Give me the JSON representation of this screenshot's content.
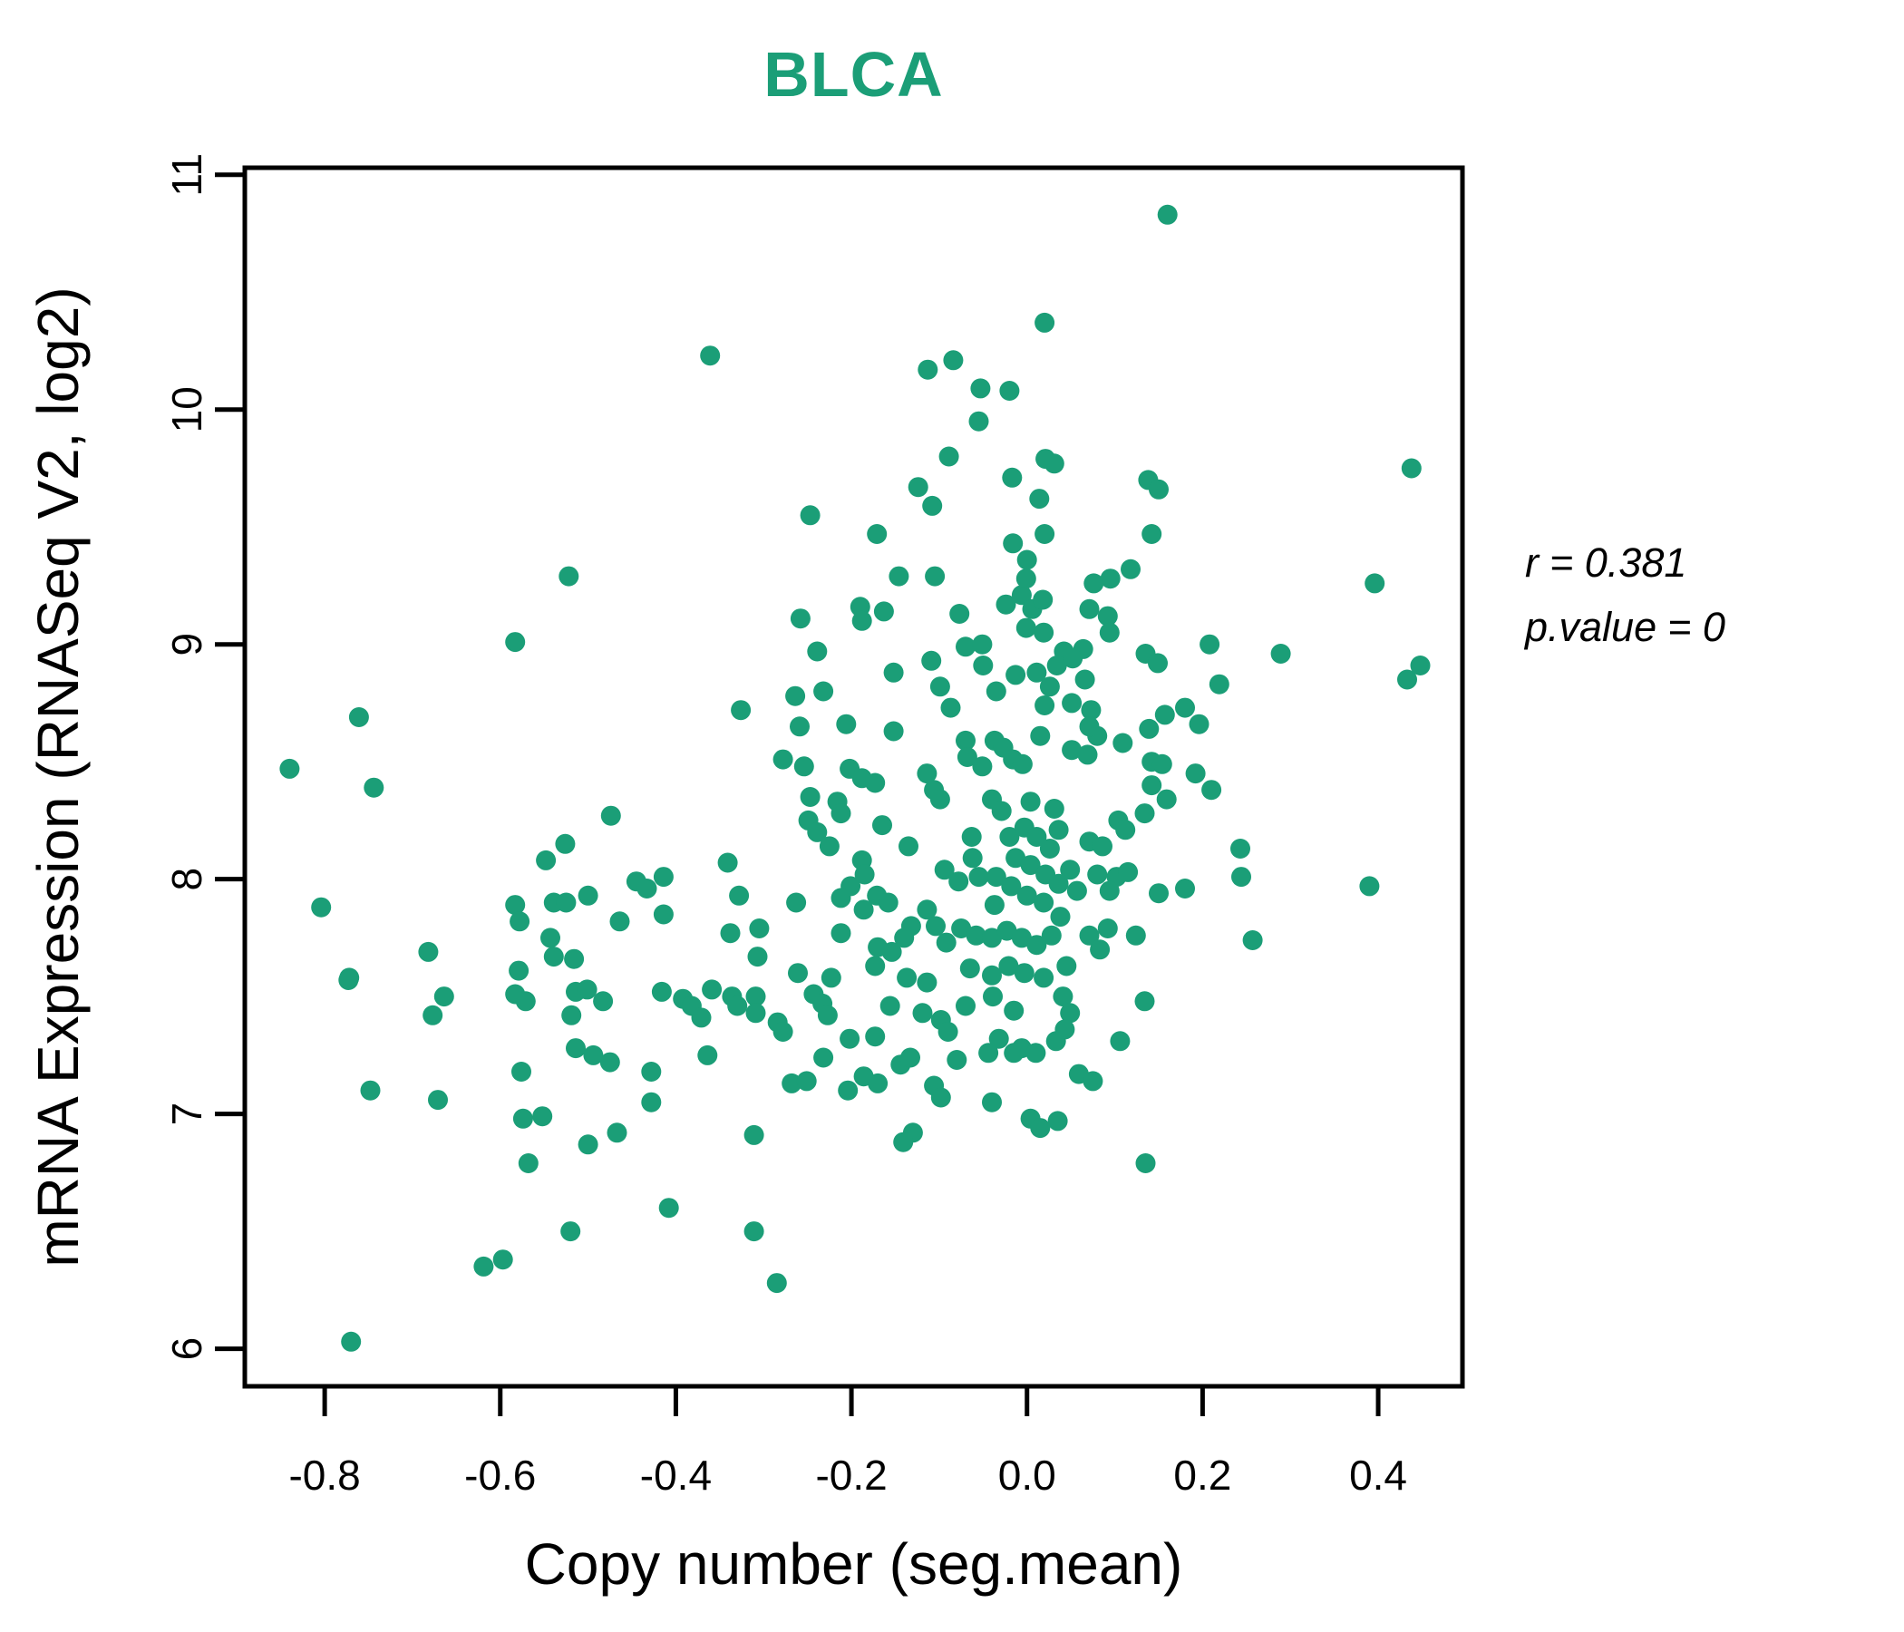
{
  "title": "BLCA",
  "annotation": {
    "lines": [
      {
        "lhs": "r",
        "rhs": "= 0.381"
      },
      {
        "lhs": "p.value",
        "rhs": "= 0"
      }
    ]
  },
  "chart_data": {
    "type": "scatter",
    "title": "BLCA",
    "xlabel": "Copy number (seg.mean)",
    "ylabel": "mRNA Expression (RNASeq V2, log2)",
    "xlim": [
      -0.891,
      0.496
    ],
    "ylim": [
      5.84,
      11.03
    ],
    "grid": false,
    "legend": "none",
    "title_color": "#1B9E77",
    "point_color": "#1B9E77",
    "axis_color": "#000000",
    "x_ticks": {
      "values": [
        -0.8,
        -0.6,
        -0.4,
        -0.2,
        0.0,
        0.2,
        0.4
      ],
      "labels": [
        "-0.8",
        "-0.6",
        "-0.4",
        "-0.2",
        "0.0",
        "0.2",
        "0.4"
      ]
    },
    "y_ticks": {
      "values": [
        6,
        7,
        8,
        9,
        10,
        11
      ],
      "labels": [
        "6",
        "7",
        "8",
        "9",
        "10",
        "11"
      ]
    },
    "annotation": {
      "r": "0.381",
      "p_value": "0"
    },
    "points": [
      [
        -0.361,
        10.23
      ],
      [
        0.02,
        10.37
      ],
      [
        -0.113,
        10.17
      ],
      [
        -0.084,
        10.21
      ],
      [
        -0.053,
        10.09
      ],
      [
        -0.02,
        10.08
      ],
      [
        -0.055,
        9.95
      ],
      [
        -0.089,
        9.8
      ],
      [
        -0.017,
        9.71
      ],
      [
        0.021,
        9.79
      ],
      [
        -0.124,
        9.67
      ],
      [
        -0.108,
        9.59
      ],
      [
        0.014,
        9.62
      ],
      [
        -0.016,
        9.43
      ],
      [
        -0.247,
        9.55
      ],
      [
        -0.171,
        9.47
      ],
      [
        0.02,
        9.47
      ],
      [
        0.0,
        9.36
      ],
      [
        -0.146,
        9.29
      ],
      [
        -0.105,
        9.29
      ],
      [
        0.16,
        10.83
      ],
      [
        0.438,
        9.75
      ],
      [
        0.138,
        9.7
      ],
      [
        0.15,
        9.66
      ],
      [
        0.142,
        9.47
      ],
      [
        0.118,
        9.32
      ],
      [
        0.095,
        9.28
      ],
      [
        0.031,
        9.77
      ],
      [
        0.396,
        9.26
      ],
      [
        0.076,
        9.26
      ],
      [
        -0.522,
        9.29
      ],
      [
        -0.583,
        9.01
      ],
      [
        -0.761,
        8.69
      ],
      [
        -0.84,
        8.47
      ],
      [
        -0.744,
        8.39
      ],
      [
        -0.474,
        8.27
      ],
      [
        -0.526,
        8.15
      ],
      [
        -0.548,
        8.08
      ],
      [
        -0.583,
        7.89
      ],
      [
        -0.578,
        7.82
      ],
      [
        -0.539,
        7.9
      ],
      [
        -0.525,
        7.9
      ],
      [
        -0.5,
        7.93
      ],
      [
        -0.445,
        7.99
      ],
      [
        -0.464,
        7.82
      ],
      [
        -0.543,
        7.75
      ],
      [
        -0.539,
        7.67
      ],
      [
        -0.516,
        7.66
      ],
      [
        -0.579,
        7.61
      ],
      [
        -0.804,
        7.88
      ],
      [
        -0.682,
        7.69
      ],
      [
        -0.772,
        7.58
      ],
      [
        -0.433,
        7.96
      ],
      [
        -0.258,
        9.11
      ],
      [
        -0.19,
        9.16
      ],
      [
        -0.188,
        9.1
      ],
      [
        -0.163,
        9.14
      ],
      [
        -0.077,
        9.13
      ],
      [
        -0.07,
        8.99
      ],
      [
        -0.051,
        9.0
      ],
      [
        -0.05,
        8.91
      ],
      [
        -0.024,
        9.17
      ],
      [
        -0.006,
        9.21
      ],
      [
        -0.001,
        9.28
      ],
      [
        0.006,
        9.15
      ],
      [
        0.018,
        9.19
      ],
      [
        -0.001,
        9.07
      ],
      [
        0.019,
        9.05
      ],
      [
        0.042,
        8.97
      ],
      [
        0.034,
        8.91
      ],
      [
        -0.109,
        8.93
      ],
      [
        -0.152,
        8.88
      ],
      [
        -0.239,
        8.97
      ],
      [
        -0.232,
        8.8
      ],
      [
        -0.264,
        8.78
      ],
      [
        -0.326,
        8.72
      ],
      [
        -0.259,
        8.65
      ],
      [
        -0.206,
        8.66
      ],
      [
        -0.152,
        8.63
      ],
      [
        -0.099,
        8.82
      ],
      [
        -0.087,
        8.73
      ],
      [
        -0.035,
        8.8
      ],
      [
        -0.013,
        8.87
      ],
      [
        0.011,
        8.88
      ],
      [
        0.026,
        8.82
      ],
      [
        0.02,
        8.74
      ],
      [
        -0.07,
        8.59
      ],
      [
        -0.068,
        8.52
      ],
      [
        -0.037,
        8.59
      ],
      [
        -0.027,
        8.56
      ],
      [
        -0.016,
        8.51
      ],
      [
        -0.005,
        8.49
      ],
      [
        0.015,
        8.61
      ],
      [
        -0.278,
        8.51
      ],
      [
        -0.254,
        8.48
      ],
      [
        -0.202,
        8.47
      ],
      [
        -0.188,
        8.43
      ],
      [
        -0.173,
        8.41
      ],
      [
        -0.114,
        8.45
      ],
      [
        -0.106,
        8.38
      ],
      [
        -0.099,
        8.34
      ],
      [
        -0.051,
        8.48
      ],
      [
        -0.04,
        8.34
      ],
      [
        -0.029,
        8.29
      ],
      [
        0.004,
        8.33
      ],
      [
        0.031,
        8.3
      ],
      [
        -0.247,
        8.35
      ],
      [
        -0.216,
        8.33
      ],
      [
        -0.212,
        8.28
      ],
      [
        -0.249,
        8.25
      ],
      [
        -0.239,
        8.2
      ],
      [
        -0.225,
        8.14
      ],
      [
        -0.165,
        8.23
      ],
      [
        -0.135,
        8.14
      ],
      [
        -0.063,
        8.18
      ],
      [
        -0.094,
        8.04
      ],
      [
        -0.078,
        7.99
      ],
      [
        -0.062,
        8.09
      ],
      [
        -0.055,
        8.01
      ],
      [
        -0.035,
        8.01
      ],
      [
        -0.188,
        8.08
      ],
      [
        -0.185,
        8.02
      ],
      [
        -0.201,
        7.97
      ],
      [
        -0.212,
        7.92
      ],
      [
        -0.186,
        7.87
      ],
      [
        -0.171,
        7.93
      ],
      [
        -0.158,
        7.9
      ],
      [
        -0.132,
        7.8
      ],
      [
        -0.14,
        7.75
      ],
      [
        -0.154,
        7.69
      ],
      [
        -0.17,
        7.71
      ],
      [
        -0.173,
        7.63
      ],
      [
        -0.212,
        7.77
      ],
      [
        -0.341,
        8.07
      ],
      [
        -0.328,
        7.93
      ],
      [
        -0.414,
        8.01
      ],
      [
        -0.414,
        7.85
      ],
      [
        -0.338,
        7.77
      ],
      [
        -0.305,
        7.79
      ],
      [
        -0.307,
        7.67
      ],
      [
        -0.263,
        7.9
      ],
      [
        -0.261,
        7.6
      ],
      [
        -0.223,
        7.58
      ],
      [
        -0.02,
        8.18
      ],
      [
        -0.003,
        8.22
      ],
      [
        0.011,
        8.18
      ],
      [
        0.026,
        8.13
      ],
      [
        0.036,
        8.21
      ],
      [
        -0.013,
        8.09
      ],
      [
        0.004,
        8.06
      ],
      [
        0.021,
        8.02
      ],
      [
        -0.018,
        7.97
      ],
      [
        0.0,
        7.93
      ],
      [
        0.019,
        7.9
      ],
      [
        -0.037,
        7.89
      ],
      [
        0.036,
        7.98
      ],
      [
        -0.114,
        7.87
      ],
      [
        -0.104,
        7.8
      ],
      [
        -0.092,
        7.73
      ],
      [
        -0.075,
        7.79
      ],
      [
        -0.058,
        7.76
      ],
      [
        -0.04,
        7.75
      ],
      [
        -0.023,
        7.78
      ],
      [
        -0.006,
        7.75
      ],
      [
        0.011,
        7.72
      ],
      [
        0.028,
        7.76
      ],
      [
        -0.065,
        7.62
      ],
      [
        -0.04,
        7.59
      ],
      [
        -0.021,
        7.63
      ],
      [
        -0.003,
        7.6
      ],
      [
        0.019,
        7.58
      ],
      [
        -0.137,
        7.58
      ],
      [
        -0.114,
        7.56
      ],
      [
        0.071,
        9.15
      ],
      [
        0.092,
        9.12
      ],
      [
        0.094,
        9.05
      ],
      [
        0.208,
        9.0
      ],
      [
        0.289,
        8.96
      ],
      [
        0.135,
        8.96
      ],
      [
        0.149,
        8.92
      ],
      [
        0.433,
        8.85
      ],
      [
        0.448,
        8.91
      ],
      [
        0.219,
        8.83
      ],
      [
        0.064,
        8.98
      ],
      [
        0.052,
        8.94
      ],
      [
        0.066,
        8.85
      ],
      [
        0.051,
        8.75
      ],
      [
        0.073,
        8.72
      ],
      [
        0.051,
        8.55
      ],
      [
        0.069,
        8.53
      ],
      [
        0.08,
        8.61
      ],
      [
        0.071,
        8.65
      ],
      [
        0.109,
        8.58
      ],
      [
        0.139,
        8.64
      ],
      [
        0.142,
        8.5
      ],
      [
        0.154,
        8.49
      ],
      [
        0.159,
        8.34
      ],
      [
        0.157,
        8.7
      ],
      [
        0.18,
        8.73
      ],
      [
        0.196,
        8.66
      ],
      [
        0.192,
        8.45
      ],
      [
        0.21,
        8.38
      ],
      [
        0.142,
        8.4
      ],
      [
        0.134,
        8.28
      ],
      [
        0.104,
        8.25
      ],
      [
        0.112,
        8.21
      ],
      [
        0.071,
        8.16
      ],
      [
        0.086,
        8.14
      ],
      [
        0.049,
        8.04
      ],
      [
        0.08,
        8.02
      ],
      [
        0.102,
        8.01
      ],
      [
        0.115,
        8.03
      ],
      [
        0.094,
        7.95
      ],
      [
        0.057,
        7.95
      ],
      [
        0.15,
        7.94
      ],
      [
        0.18,
        7.96
      ],
      [
        0.243,
        8.13
      ],
      [
        0.244,
        8.01
      ],
      [
        0.39,
        7.97
      ],
      [
        0.257,
        7.74
      ],
      [
        0.092,
        7.79
      ],
      [
        0.124,
        7.76
      ],
      [
        0.071,
        7.76
      ],
      [
        0.083,
        7.7
      ],
      [
        0.038,
        7.84
      ],
      [
        0.045,
        7.63
      ],
      [
        -0.773,
        7.57
      ],
      [
        -0.677,
        7.42
      ],
      [
        -0.664,
        7.5
      ],
      [
        -0.583,
        7.51
      ],
      [
        -0.571,
        7.48
      ],
      [
        -0.514,
        7.52
      ],
      [
        -0.501,
        7.53
      ],
      [
        -0.519,
        7.42
      ],
      [
        -0.483,
        7.48
      ],
      [
        -0.576,
        7.18
      ],
      [
        -0.514,
        7.28
      ],
      [
        -0.494,
        7.25
      ],
      [
        -0.475,
        7.22
      ],
      [
        -0.748,
        7.1
      ],
      [
        -0.671,
        7.06
      ],
      [
        -0.574,
        6.98
      ],
      [
        -0.552,
        6.99
      ],
      [
        -0.5,
        6.87
      ],
      [
        -0.467,
        6.92
      ],
      [
        -0.568,
        6.79
      ],
      [
        -0.77,
        6.03
      ],
      [
        -0.619,
        6.35
      ],
      [
        -0.597,
        6.38
      ],
      [
        -0.52,
        6.5
      ],
      [
        -0.416,
        7.52
      ],
      [
        -0.392,
        7.49
      ],
      [
        -0.382,
        7.46
      ],
      [
        -0.371,
        7.41
      ],
      [
        -0.359,
        7.53
      ],
      [
        -0.336,
        7.5
      ],
      [
        -0.33,
        7.46
      ],
      [
        -0.309,
        7.5
      ],
      [
        -0.309,
        7.43
      ],
      [
        -0.284,
        7.39
      ],
      [
        -0.278,
        7.35
      ],
      [
        -0.243,
        7.51
      ],
      [
        -0.233,
        7.47
      ],
      [
        -0.227,
        7.42
      ],
      [
        -0.364,
        7.25
      ],
      [
        -0.202,
        7.32
      ],
      [
        -0.173,
        7.33
      ],
      [
        -0.232,
        7.24
      ],
      [
        -0.156,
        7.46
      ],
      [
        -0.119,
        7.43
      ],
      [
        -0.098,
        7.4
      ],
      [
        -0.09,
        7.35
      ],
      [
        -0.07,
        7.46
      ],
      [
        -0.039,
        7.5
      ],
      [
        -0.015,
        7.44
      ],
      [
        -0.032,
        7.32
      ],
      [
        -0.044,
        7.26
      ],
      [
        -0.006,
        7.28
      ],
      [
        0.01,
        7.26
      ],
      [
        -0.015,
        7.26
      ],
      [
        0.033,
        7.31
      ],
      [
        -0.08,
        7.23
      ],
      [
        -0.144,
        7.21
      ],
      [
        -0.133,
        7.24
      ],
      [
        -0.186,
        7.16
      ],
      [
        -0.17,
        7.13
      ],
      [
        -0.268,
        7.13
      ],
      [
        -0.251,
        7.14
      ],
      [
        -0.204,
        7.1
      ],
      [
        -0.428,
        7.18
      ],
      [
        -0.428,
        7.05
      ],
      [
        -0.106,
        7.12
      ],
      [
        -0.098,
        7.07
      ],
      [
        -0.04,
        7.05
      ],
      [
        0.004,
        6.98
      ],
      [
        0.015,
        6.94
      ],
      [
        -0.13,
        6.92
      ],
      [
        -0.141,
        6.88
      ],
      [
        -0.311,
        6.91
      ],
      [
        -0.408,
        6.6
      ],
      [
        -0.311,
        6.5
      ],
      [
        -0.285,
        6.28
      ],
      [
        0.035,
        6.97
      ],
      [
        0.041,
        7.5
      ],
      [
        0.049,
        7.43
      ],
      [
        0.043,
        7.36
      ],
      [
        0.134,
        7.48
      ],
      [
        0.106,
        7.31
      ],
      [
        0.059,
        7.17
      ],
      [
        0.075,
        7.14
      ],
      [
        0.135,
        6.79
      ]
    ]
  }
}
